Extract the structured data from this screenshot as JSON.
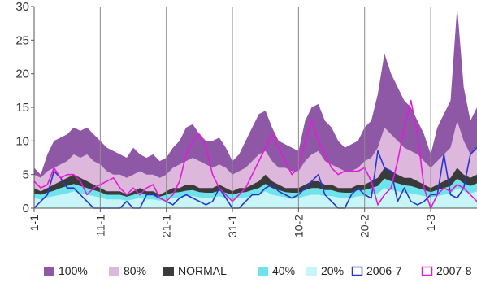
{
  "chart_data": {
    "type": "area",
    "title": "",
    "xlabel": "",
    "ylabel": "",
    "ylim": [
      0,
      30
    ],
    "yticks": [
      "0",
      "5",
      "10",
      "15",
      "20",
      "25",
      "30"
    ],
    "x_ticks": [
      "1-1",
      "11-1",
      "21-1",
      "31-1",
      "10-2",
      "20-2",
      "1-3"
    ],
    "grid": "vertical lines at x ticks",
    "legend_position": "bottom",
    "days": 68,
    "series": [
      {
        "name": "100%",
        "kind": "area",
        "color": "#8e58a6",
        "values": [
          6,
          5,
          8,
          10,
          10.5,
          11,
          12,
          11.5,
          12,
          11,
          10,
          9,
          8.5,
          8,
          7.5,
          9,
          8,
          7.5,
          8,
          7,
          7.5,
          9,
          10,
          12,
          12.5,
          11,
          10,
          10,
          10.5,
          9,
          7,
          8,
          10,
          12,
          14,
          14.5,
          12,
          10,
          9.5,
          9,
          8.5,
          13,
          15,
          15.5,
          13,
          12,
          10,
          9,
          9.5,
          10,
          12,
          13,
          17,
          23,
          20,
          18,
          16,
          15,
          13,
          11,
          8,
          12,
          14,
          16,
          30,
          18,
          13,
          15
        ]
      },
      {
        "name": "80%",
        "kind": "area",
        "color": "#ddb8dc",
        "values": [
          5,
          4.5,
          5.5,
          6,
          6.5,
          7,
          8,
          7.5,
          8,
          7,
          6.5,
          5.5,
          5,
          5,
          4.5,
          5,
          5.5,
          5,
          5,
          4.5,
          5,
          6,
          6.5,
          7,
          7.5,
          7,
          6.5,
          6,
          6.5,
          6,
          5,
          5.5,
          6,
          7,
          8,
          8.5,
          7,
          6,
          6,
          5.5,
          5.5,
          7,
          8,
          8.5,
          7,
          6.5,
          6,
          5.5,
          5.5,
          6,
          7,
          7.5,
          9,
          12,
          11,
          10,
          9,
          8.5,
          8,
          7,
          6,
          7,
          8,
          9,
          13,
          10,
          8,
          9
        ]
      },
      {
        "name": "NORMAL",
        "kind": "area",
        "color": "#3a3a3a",
        "values": [
          3,
          2.5,
          3,
          3.5,
          4,
          4.5,
          5,
          4.5,
          4,
          3.5,
          3,
          2.5,
          2.5,
          2.5,
          2,
          2.5,
          3,
          2.5,
          2.5,
          2,
          2.5,
          3,
          3,
          3.5,
          3.5,
          3,
          3,
          3,
          3.5,
          3,
          2.5,
          3,
          3,
          3.5,
          4,
          5,
          4,
          3.5,
          3,
          3,
          3,
          3.5,
          4,
          4,
          3.5,
          3.5,
          3,
          3,
          3,
          3.5,
          3.5,
          4,
          4.5,
          6,
          5.5,
          5,
          4.5,
          4.5,
          4,
          3.5,
          3,
          3.5,
          4,
          4.5,
          6,
          5,
          4.5,
          5
        ]
      },
      {
        "name": "40%",
        "kind": "area",
        "color": "#6fe3ec",
        "values": [
          2.2,
          2,
          2.3,
          2.6,
          3,
          3.3,
          3.6,
          3.3,
          3,
          2.7,
          2.4,
          2,
          2,
          2,
          1.7,
          2,
          2.3,
          2,
          2,
          1.7,
          2,
          2.3,
          2.4,
          2.6,
          2.7,
          2.4,
          2.3,
          2.3,
          2.6,
          2.3,
          2,
          2.3,
          2.4,
          2.7,
          3,
          3.6,
          3,
          2.7,
          2.4,
          2.3,
          2.3,
          2.7,
          3,
          3,
          2.7,
          2.7,
          2.4,
          2.3,
          2.3,
          2.7,
          2.7,
          3,
          3.3,
          4.4,
          4,
          3.7,
          3.4,
          3.3,
          3,
          2.7,
          2.4,
          2.7,
          3,
          3.3,
          4.4,
          3.7,
          3.3,
          3.7
        ]
      },
      {
        "name": "20%",
        "kind": "area",
        "color": "#c8f5f8",
        "values": [
          1.5,
          1.3,
          1.6,
          1.8,
          2,
          2.2,
          2.5,
          2.2,
          2,
          1.8,
          1.6,
          1.3,
          1.3,
          1.3,
          1.1,
          1.3,
          1.5,
          1.3,
          1.3,
          1.1,
          1.3,
          1.5,
          1.6,
          1.8,
          1.8,
          1.6,
          1.5,
          1.5,
          1.8,
          1.5,
          1.3,
          1.5,
          1.6,
          1.8,
          2,
          2.5,
          2,
          1.8,
          1.6,
          1.5,
          1.5,
          1.8,
          2,
          2,
          1.8,
          1.8,
          1.6,
          1.5,
          1.5,
          1.8,
          1.8,
          2,
          2.2,
          3,
          2.7,
          2.5,
          2.3,
          2.2,
          2,
          1.8,
          1.6,
          1.8,
          2,
          2.2,
          3,
          2.5,
          2.2,
          2.5
        ]
      },
      {
        "name": "2006-7",
        "kind": "line",
        "color": "#2a35c9",
        "values": [
          0,
          1,
          2,
          5.5,
          4.5,
          3,
          3,
          2,
          1,
          0,
          0,
          0,
          0,
          0,
          1,
          0,
          0,
          2,
          2,
          1.5,
          1,
          0.5,
          1.5,
          2,
          1.5,
          1,
          0.5,
          1,
          3,
          1.5,
          0,
          0,
          1,
          2,
          2,
          3,
          3.5,
          2.5,
          2,
          1.5,
          2,
          3,
          4,
          5,
          2,
          1,
          0,
          0,
          2,
          3,
          2,
          1.5,
          8.5,
          6,
          5.5,
          1,
          3,
          1,
          0.5,
          1,
          2,
          2,
          8,
          2,
          1.5,
          3,
          8,
          9
        ]
      },
      {
        "name": "2007-8",
        "kind": "line",
        "color": "#e01cd7",
        "values": [
          4,
          3,
          3.5,
          6,
          4.5,
          5,
          5,
          4,
          2,
          3,
          3.5,
          4,
          4.5,
          3,
          2,
          3,
          2,
          3,
          3.5,
          1.5,
          1,
          2,
          4,
          8,
          10,
          11,
          9,
          5,
          3,
          2,
          1,
          2,
          3,
          5,
          7,
          9,
          11,
          9,
          7,
          5,
          6,
          10,
          13,
          10,
          8,
          6,
          5,
          5.5,
          5.5,
          5.5,
          6,
          4,
          0.5,
          2,
          3,
          7,
          12,
          16,
          11,
          3,
          0,
          2,
          3,
          2.5,
          3.5,
          3,
          2,
          1
        ]
      }
    ]
  }
}
